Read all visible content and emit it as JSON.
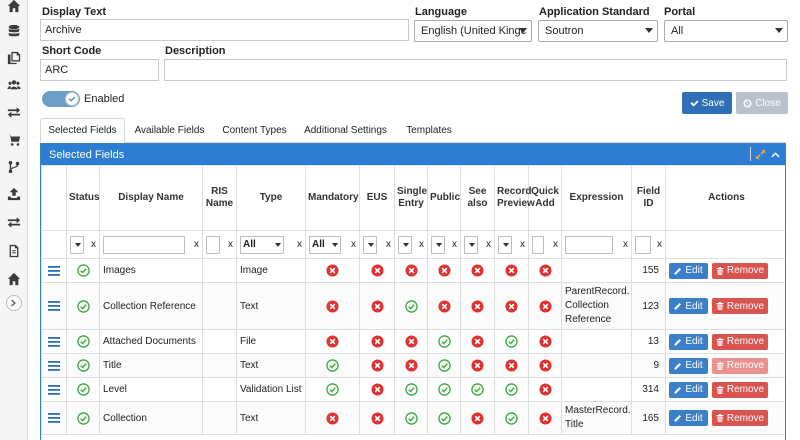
{
  "form": {
    "display_text_label": "Display Text",
    "display_text_value": "Archive",
    "language_label": "Language",
    "language_value": "English (United Kingc",
    "app_standard_label": "Application Standard",
    "app_standard_value": "Soutron",
    "portal_label": "Portal",
    "portal_value": "All",
    "short_code_label": "Short Code",
    "short_code_value": "ARC",
    "description_label": "Description",
    "description_value": "",
    "enabled_label": "Enabled",
    "save_label": "Save",
    "close_label": "Close"
  },
  "tabs": [
    {
      "label": "Selected Fields",
      "active": true
    },
    {
      "label": "Available Fields",
      "active": false
    },
    {
      "label": "Content Types",
      "active": false
    },
    {
      "label": "Additional Settings",
      "active": false
    },
    {
      "label": "Templates",
      "active": false
    }
  ],
  "panel": {
    "title": "Selected Fields"
  },
  "columns": {
    "status": "Status",
    "display_name": "Display Name",
    "ris_name": "RIS Name",
    "type": "Type",
    "mandatory": "Mandatory",
    "eus": "EUS",
    "single_entry": "Single Entry",
    "public": "Public",
    "see_also": "See also",
    "record_preview": "Record Preview",
    "quick_add": "Quick Add",
    "expression": "Expression",
    "field_id": "Field ID",
    "actions": "Actions"
  },
  "filters": {
    "clear_label": "x",
    "type_value": "All",
    "mandatory_value": "All"
  },
  "rows": [
    {
      "display_name": "Images",
      "type": "Image",
      "mandatory": false,
      "eus": false,
      "single_entry": false,
      "public": false,
      "see_also": false,
      "record_preview": false,
      "quick_add": false,
      "expression": [],
      "field_id": "155",
      "remove_dimmed": false
    },
    {
      "display_name": "Collection Reference",
      "type": "Text",
      "mandatory": false,
      "eus": false,
      "single_entry": true,
      "public": false,
      "see_also": false,
      "record_preview": false,
      "quick_add": false,
      "expression": [
        "ParentRecord.",
        "Collection",
        "Reference"
      ],
      "field_id": "123",
      "remove_dimmed": false
    },
    {
      "display_name": "Attached Documents",
      "type": "File",
      "mandatory": false,
      "eus": false,
      "single_entry": false,
      "public": true,
      "see_also": false,
      "record_preview": true,
      "quick_add": false,
      "expression": [],
      "field_id": "13",
      "remove_dimmed": false
    },
    {
      "display_name": "Title",
      "type": "Text",
      "mandatory": true,
      "eus": false,
      "single_entry": false,
      "public": true,
      "see_also": false,
      "record_preview": false,
      "quick_add": false,
      "expression": [],
      "field_id": "9",
      "remove_dimmed": true
    },
    {
      "display_name": "Level",
      "type": "Validation List",
      "mandatory": true,
      "eus": false,
      "single_entry": true,
      "public": true,
      "see_also": true,
      "record_preview": true,
      "quick_add": false,
      "expression": [],
      "field_id": "314",
      "remove_dimmed": false
    },
    {
      "display_name": "Collection",
      "type": "Text",
      "mandatory": false,
      "eus": false,
      "single_entry": true,
      "public": true,
      "see_also": false,
      "record_preview": true,
      "quick_add": false,
      "expression": [
        "MasterRecord.",
        "Title"
      ],
      "field_id": "165",
      "remove_dimmed": false
    }
  ],
  "row_actions": {
    "edit_label": "Edit",
    "remove_label": "Remove"
  },
  "colors": {
    "accent": "#2d7dd2",
    "edit": "#3a7fc9",
    "remove": "#d9534f",
    "yes": "#3aa83a",
    "no": "#e0322e"
  },
  "icons": {
    "rail": [
      "home-icon",
      "database-icon",
      "copy-icon",
      "users-icon",
      "exchange-icon",
      "cart-icon",
      "branch-icon",
      "upload-icon",
      "exchange-icon",
      "document-icon",
      "home-icon"
    ]
  }
}
